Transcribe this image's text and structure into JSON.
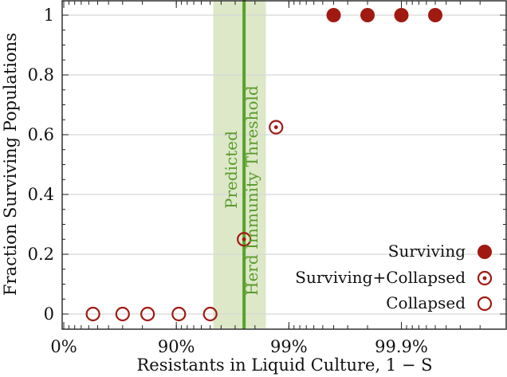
{
  "chart_data": {
    "type": "scatter",
    "title": "",
    "xlabel": "Resistants in Liquid Culture, 1 − S",
    "ylabel": "Fraction Surviving Populations",
    "x_scale": "log-fraction-nines",
    "x_tick_labels": [
      "0%",
      "90%",
      "99%",
      "99.9%"
    ],
    "y_ticks": [
      0,
      0.2,
      0.4,
      0.6,
      0.8,
      1
    ],
    "y_tick_labels": [
      "0",
      "0.2",
      "0.4",
      "0.6",
      "0.8",
      "1"
    ],
    "ylim": [
      -0.02,
      1.02
    ],
    "grid": "horizontal",
    "legend_position": "bottom-right",
    "series": [
      {
        "name": "Surviving",
        "marker": "filled-circle",
        "points": [
          [
            99.6,
            1
          ],
          [
            99.8,
            1
          ],
          [
            99.9,
            1
          ],
          [
            99.95,
            1
          ]
        ]
      },
      {
        "name": "Surviving+Collapsed",
        "marker": "dotted-circle",
        "points": [
          [
            97.5,
            0.25
          ],
          [
            98.7,
            0.625
          ]
        ]
      },
      {
        "name": "Collapsed",
        "marker": "open-circle",
        "points": [
          [
            45,
            0
          ],
          [
            70,
            0
          ],
          [
            82,
            0
          ],
          [
            90.5,
            0
          ],
          [
            95,
            0
          ]
        ]
      }
    ],
    "annotation": {
      "line1": "Predicted",
      "line2": "Herd Immunity Threshold",
      "threshold": 97.5,
      "band": [
        95.3,
        98.4
      ]
    },
    "colors": {
      "marker": "#a01a12",
      "threshold": "#5aa02c",
      "band": "#dce8c8",
      "grid": "#d8d8d8"
    }
  }
}
